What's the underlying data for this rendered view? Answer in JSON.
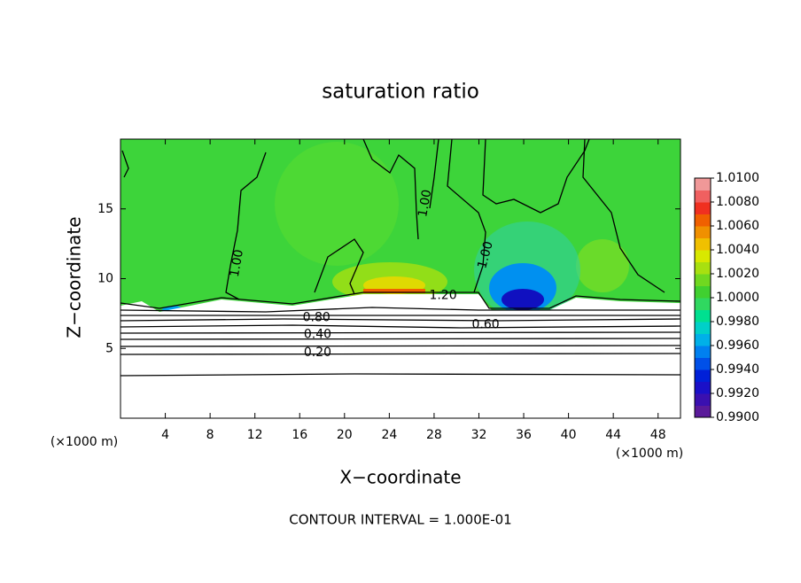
{
  "chart_data": {
    "type": "contour",
    "title": "saturation ratio",
    "x_label": "X−coordinate",
    "y_label": "Z−coordinate",
    "x_unit_label": "(×1000 m)",
    "y_unit_label": "(×1000 m)",
    "footer": "CONTOUR INTERVAL = 1.000E-01",
    "xlim": [
      0,
      50
    ],
    "xticks": [
      4,
      8,
      12,
      16,
      20,
      24,
      28,
      32,
      36,
      40,
      44,
      48
    ],
    "ylim": [
      0,
      20
    ],
    "yticks": [
      5,
      10,
      15
    ],
    "colorbar_lim": [
      0.99,
      1.01
    ],
    "colorbar_ticks": [
      {
        "value": 0.99,
        "label": "0.9900"
      },
      {
        "value": 0.992,
        "label": "0.9920"
      },
      {
        "value": 0.994,
        "label": "0.9940"
      },
      {
        "value": 0.996,
        "label": "0.9960"
      },
      {
        "value": 0.998,
        "label": "0.9980"
      },
      {
        "value": 1.0,
        "label": "1.0000"
      },
      {
        "value": 1.002,
        "label": "1.0020"
      },
      {
        "value": 1.004,
        "label": "1.0040"
      },
      {
        "value": 1.006,
        "label": "1.0060"
      },
      {
        "value": 1.008,
        "label": "1.0080"
      },
      {
        "value": 1.01,
        "label": "1.0100"
      }
    ],
    "colorscale": [
      "#5a1a9a",
      "#3a10b0",
      "#1a10c8",
      "#0020d8",
      "#0050e8",
      "#0080f0",
      "#00b0e8",
      "#00d0c8",
      "#00e090",
      "#30d860",
      "#40d030",
      "#70d820",
      "#a8e010",
      "#d8e800",
      "#f0c000",
      "#f09000",
      "#f06000",
      "#f03020",
      "#f06060",
      "#f09898"
    ],
    "contour_labels": [
      {
        "value": 1.2,
        "label": "1.20",
        "x": 28.8,
        "y": 8.8
      },
      {
        "value": 0.8,
        "label": "0.80",
        "x": 17.5,
        "y": 7.2
      },
      {
        "value": 0.4,
        "label": "0.40",
        "x": 17.6,
        "y": 6.0
      },
      {
        "value": 0.2,
        "label": "0.20",
        "x": 17.6,
        "y": 4.7
      },
      {
        "value": 0.6,
        "label": "0.60",
        "x": 32.6,
        "y": 6.7
      },
      {
        "value": 1,
        "label": "1.00",
        "x": 10.4,
        "y": 11.1
      },
      {
        "value": 1,
        "label": "1.00",
        "x": 27.2,
        "y": 15.4
      },
      {
        "value": 1,
        "label": "1.00",
        "x": 32.6,
        "y": 11.7
      }
    ]
  }
}
